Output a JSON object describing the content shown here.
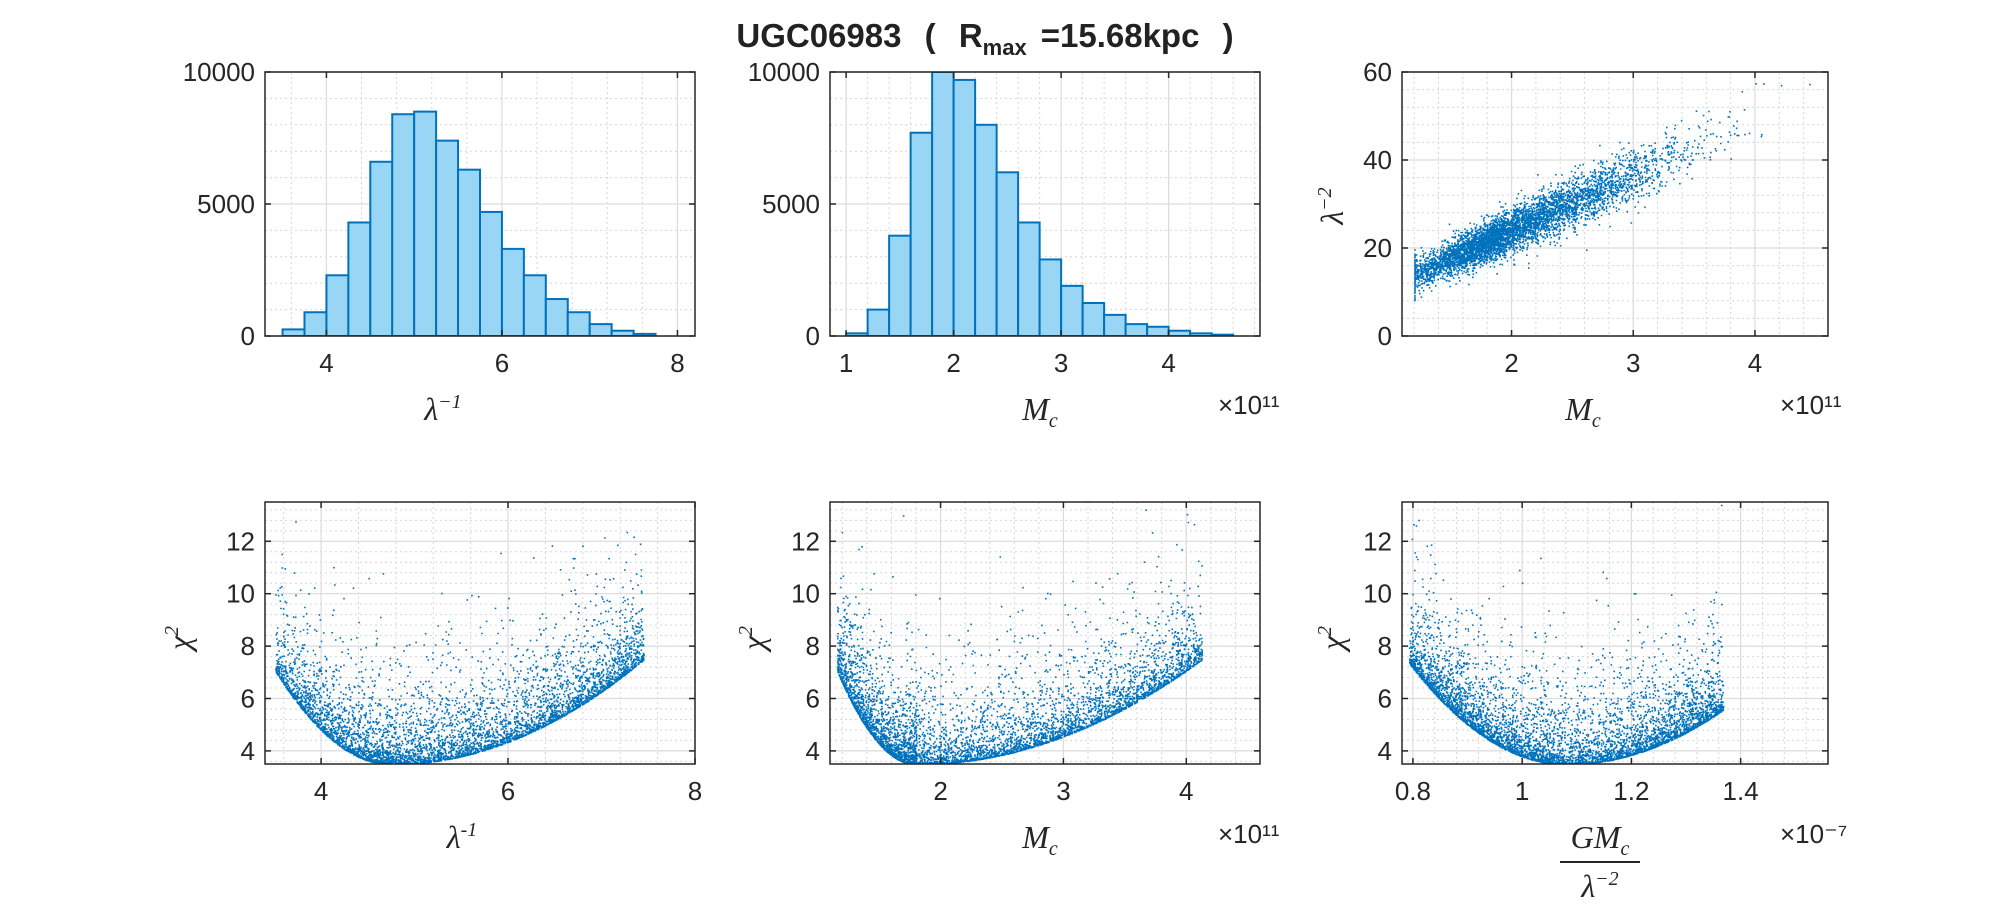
{
  "title": {
    "main": "UGC06983",
    "paren_open": "(",
    "r_letter": "R",
    "r_sub": "max",
    "r_value": "=15.68kpc",
    "paren_close": ")"
  },
  "chart_data": [
    {
      "type": "bar",
      "panel": "top-left",
      "xlabel": "λ⁻¹",
      "xlim": [
        3.3,
        8.2
      ],
      "ylim": [
        0,
        10000
      ],
      "xticks": [
        4,
        6,
        8
      ],
      "yticks": [
        0,
        5000,
        10000
      ],
      "bin_edges": [
        3.5,
        3.75,
        4.0,
        4.25,
        4.5,
        4.75,
        5.0,
        5.25,
        5.5,
        5.75,
        6.0,
        6.25,
        6.5,
        6.75,
        7.0,
        7.25,
        7.5,
        7.75
      ],
      "values": [
        250,
        900,
        2300,
        4300,
        6600,
        8400,
        8500,
        7400,
        6300,
        4700,
        3300,
        2300,
        1400,
        900,
        450,
        200,
        80
      ],
      "grid": true,
      "bar_color": "#99d6f5",
      "edge_color": "#0072bd"
    },
    {
      "type": "bar",
      "panel": "top-middle",
      "xlabel": "M_c",
      "x_exponent": "×10¹¹",
      "xlim": [
        0.85,
        4.85
      ],
      "ylim": [
        0,
        10000
      ],
      "xticks": [
        1,
        2,
        3,
        4
      ],
      "yticks": [
        0,
        5000,
        10000
      ],
      "bin_edges": [
        1.0,
        1.2,
        1.4,
        1.6,
        1.8,
        2.0,
        2.2,
        2.4,
        2.6,
        2.8,
        3.0,
        3.2,
        3.4,
        3.6,
        3.8,
        4.0,
        4.2,
        4.4,
        4.6
      ],
      "values": [
        100,
        1000,
        3800,
        7700,
        10000,
        9700,
        8000,
        6200,
        4300,
        2900,
        1900,
        1250,
        800,
        450,
        350,
        200,
        100,
        50
      ],
      "grid": true,
      "bar_color": "#99d6f5",
      "edge_color": "#0072bd"
    },
    {
      "type": "scatter",
      "panel": "top-right",
      "xlabel": "M_c",
      "x_exponent": "×10¹¹",
      "ylabel": "λ⁻²",
      "xlim": [
        1.1,
        4.6
      ],
      "ylim": [
        0,
        60
      ],
      "xticks": [
        2,
        3,
        4
      ],
      "yticks": [
        0,
        20,
        40,
        60
      ],
      "trend": {
        "x": [
          1.2,
          4.5
        ],
        "y": [
          14,
          56
        ]
      },
      "grid": true,
      "color": "#0072bd"
    },
    {
      "type": "scatter",
      "panel": "bottom-left",
      "xlabel": "λ⁻¹",
      "ylabel": "χ²",
      "xlim": [
        3.4,
        8.0
      ],
      "ylim": [
        3.5,
        13.5
      ],
      "xticks": [
        4,
        6,
        8
      ],
      "yticks": [
        4,
        6,
        8,
        10,
        12
      ],
      "minimum": {
        "x": 4.75,
        "y": 3.5
      },
      "grid": true,
      "color": "#0072bd"
    },
    {
      "type": "scatter",
      "panel": "bottom-middle",
      "xlabel": "M_c",
      "x_exponent": "×10¹¹",
      "ylabel": "χ²",
      "xlim": [
        1.1,
        4.6
      ],
      "ylim": [
        3.5,
        13.5
      ],
      "xticks": [
        2,
        3,
        4
      ],
      "yticks": [
        4,
        6,
        8,
        10,
        12
      ],
      "minimum": {
        "x": 1.8,
        "y": 3.5
      },
      "grid": true,
      "color": "#0072bd"
    },
    {
      "type": "scatter",
      "panel": "bottom-right",
      "xlabel": "G M_c / λ⁻²",
      "x_exponent": "×10⁻⁷",
      "ylabel": "χ²",
      "xlim": [
        0.78,
        1.56
      ],
      "ylim": [
        3.5,
        13.5
      ],
      "xticks": [
        0.8,
        1,
        1.2,
        1.4
      ],
      "yticks": [
        4,
        6,
        8,
        10,
        12
      ],
      "minimum": {
        "x": 1.08,
        "y": 3.5
      },
      "grid": true,
      "color": "#0072bd"
    }
  ]
}
